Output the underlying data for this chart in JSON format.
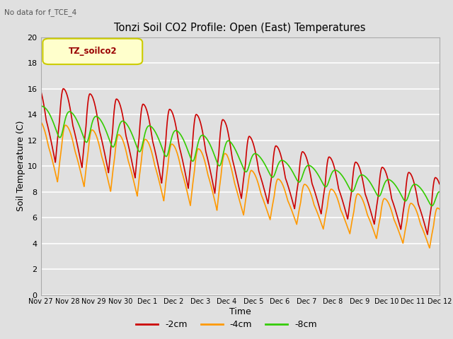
{
  "title": "Tonzi Soil CO2 Profile: Open (East) Temperatures",
  "top_left_text": "No data for f_TCE_4",
  "xlabel": "Time",
  "ylabel": "Soil Temperature (C)",
  "ylim": [
    0,
    20
  ],
  "background_color": "#e0e0e0",
  "plot_bg_color": "#e0e0e0",
  "grid_color": "#ffffff",
  "legend_label": "TZ_soilco2",
  "series_labels": [
    "-2cm",
    "-4cm",
    "-8cm"
  ],
  "series_colors": [
    "#cc0000",
    "#ff9900",
    "#33cc00"
  ],
  "tick_labels": [
    "Nov 27",
    "Nov 28",
    "Nov 29",
    "Nov 30",
    "Dec 1",
    "Dec 2",
    "Dec 3",
    "Dec 4",
    "Dec 5",
    "Dec 6",
    "Dec 7",
    "Dec 8",
    "Dec 9",
    "Dec 10",
    "Dec 11",
    "Dec 12"
  ],
  "line_width": 1.2
}
